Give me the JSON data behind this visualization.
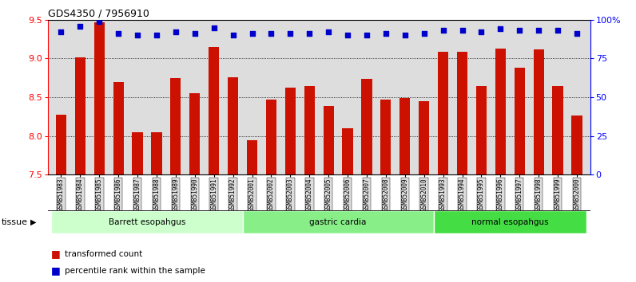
{
  "title": "GDS4350 / 7956910",
  "samples": [
    "GSM851983",
    "GSM851984",
    "GSM851985",
    "GSM851986",
    "GSM851987",
    "GSM851988",
    "GSM851989",
    "GSM851990",
    "GSM851991",
    "GSM851992",
    "GSM852001",
    "GSM852002",
    "GSM852003",
    "GSM852004",
    "GSM852005",
    "GSM852006",
    "GSM852007",
    "GSM852008",
    "GSM852009",
    "GSM852010",
    "GSM851993",
    "GSM851994",
    "GSM851995",
    "GSM851996",
    "GSM851997",
    "GSM851998",
    "GSM851999",
    "GSM852000"
  ],
  "bar_values": [
    8.28,
    9.02,
    9.47,
    8.7,
    8.05,
    8.05,
    8.75,
    8.55,
    9.15,
    8.76,
    7.95,
    8.47,
    8.62,
    8.65,
    8.39,
    8.1,
    8.74,
    8.47,
    8.49,
    8.45,
    9.09,
    9.09,
    8.65,
    9.13,
    8.88,
    9.12,
    8.65,
    8.27
  ],
  "dot_values": [
    92,
    96,
    99,
    91,
    90,
    90,
    92,
    91,
    95,
    90,
    91,
    91,
    91,
    91,
    92,
    90,
    90,
    91,
    90,
    91,
    93,
    93,
    92,
    94,
    93,
    93,
    93,
    91
  ],
  "groups": [
    {
      "label": "Barrett esopahgus",
      "start": 0,
      "end": 9,
      "color": "#ccffcc"
    },
    {
      "label": "gastric cardia",
      "start": 10,
      "end": 19,
      "color": "#88ee88"
    },
    {
      "label": "normal esopahgus",
      "start": 20,
      "end": 27,
      "color": "#44dd44"
    }
  ],
  "bar_color": "#cc1100",
  "dot_color": "#0000cc",
  "bg_color": "#dddddd",
  "ylim_left": [
    7.5,
    9.5
  ],
  "ylim_right": [
    0,
    100
  ],
  "yticks_left": [
    7.5,
    8.0,
    8.5,
    9.0,
    9.5
  ],
  "yticks_right": [
    0,
    25,
    50,
    75,
    100
  ],
  "ytick_right_labels": [
    "0",
    "25",
    "50",
    "75",
    "100%"
  ],
  "grid_values": [
    8.0,
    8.5,
    9.0
  ]
}
